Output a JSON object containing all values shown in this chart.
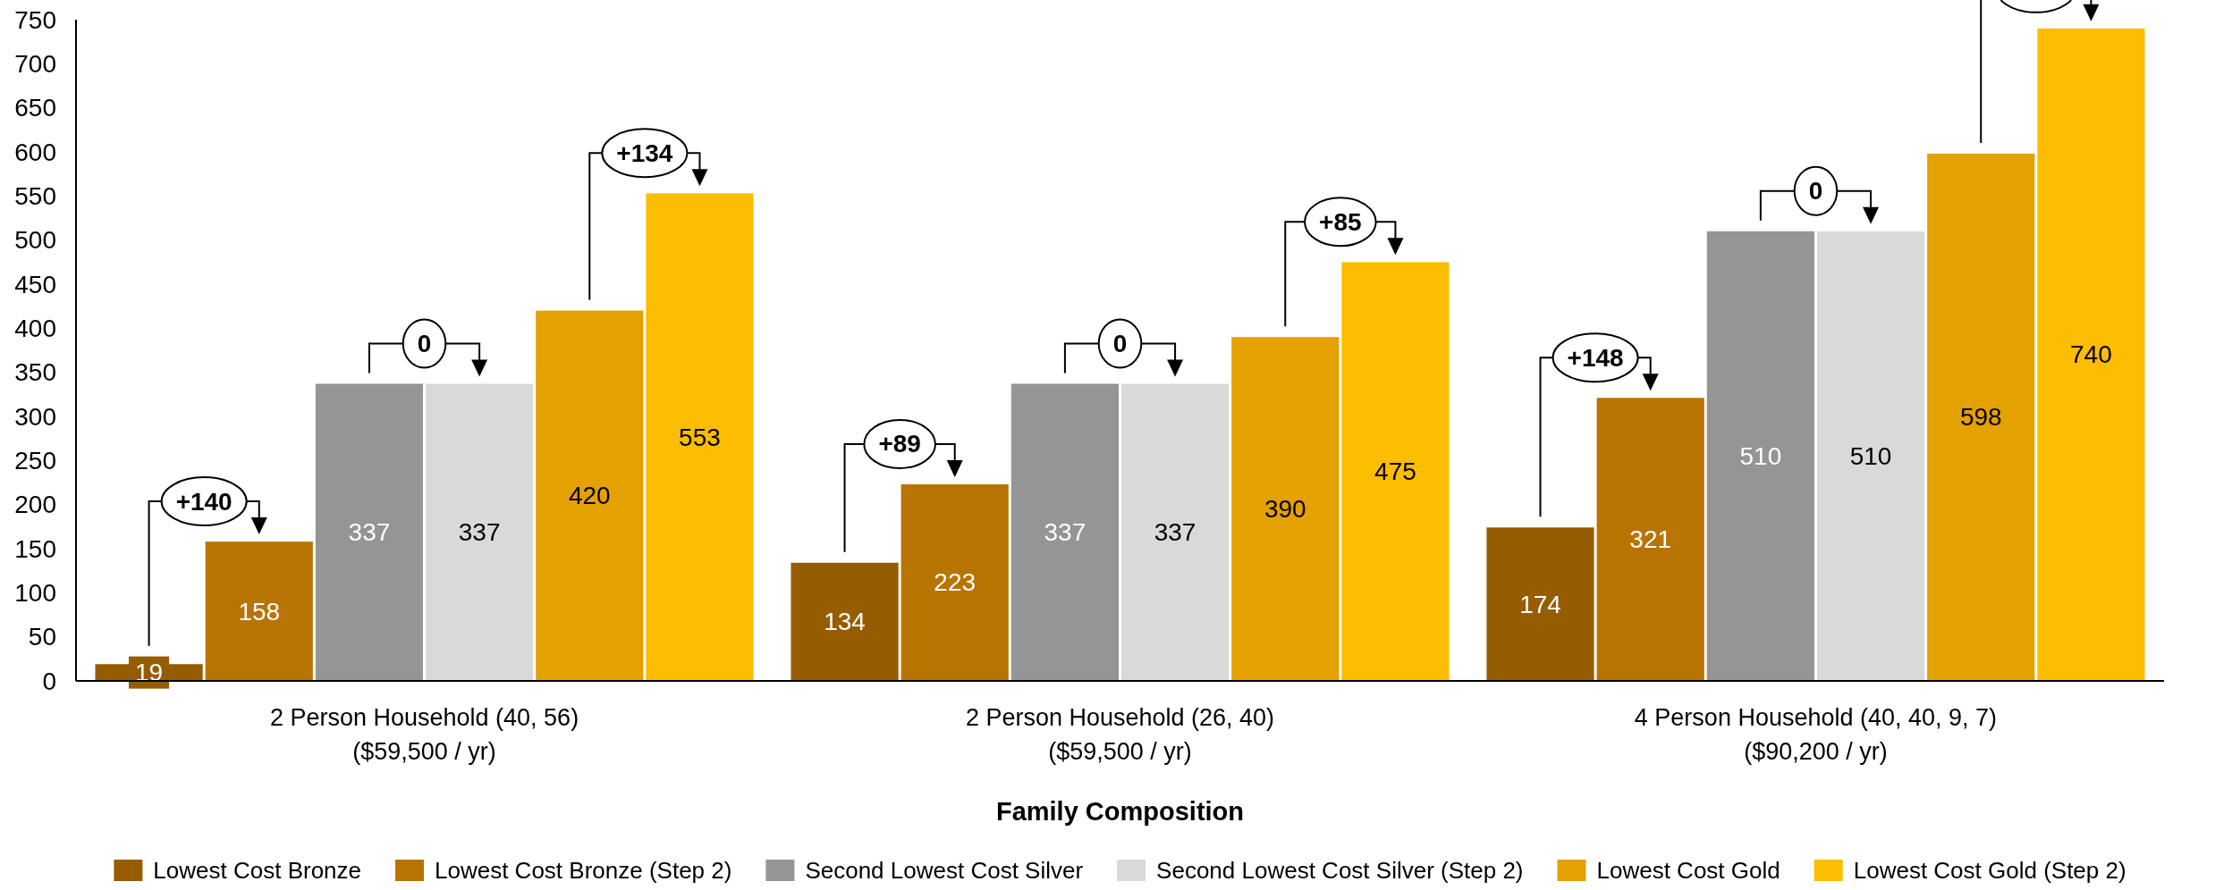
{
  "chart_data": {
    "type": "bar",
    "categories": [
      "2 Person Household (40, 56)\n($59,500 / yr)",
      "2 Person Household (26, 40)\n($59,500 / yr)",
      "4 Person Household (40, 40, 9, 7)\n($90,200 / yr)"
    ],
    "series": [
      {
        "name": "Lowest Cost Bronze",
        "color": "#965c00",
        "values": [
          19,
          134,
          174
        ]
      },
      {
        "name": "Lowest Cost Bronze (Step 2)",
        "color": "#b87400",
        "values": [
          158,
          223,
          321
        ]
      },
      {
        "name": "Second Lowest Cost Silver",
        "color": "#959595",
        "values": [
          337,
          337,
          510
        ]
      },
      {
        "name": "Second Lowest Cost Silver (Step 2)",
        "color": "#d9d9d9",
        "values": [
          337,
          337,
          510
        ]
      },
      {
        "name": "Lowest Cost Gold",
        "color": "#e5a100",
        "values": [
          420,
          390,
          598
        ]
      },
      {
        "name": "Lowest Cost Gold (Step 2)",
        "color": "#fdbd00",
        "values": [
          553,
          475,
          740
        ]
      }
    ],
    "xlabel": "Family Composition",
    "ylim": [
      0,
      750
    ],
    "yticks": [
      0,
      50,
      100,
      150,
      200,
      250,
      300,
      350,
      400,
      450,
      500,
      550,
      600,
      650,
      700,
      750
    ],
    "legend": "bottom",
    "data_labels": true,
    "annotations": [
      "+140",
      "0",
      "+134",
      "+89",
      "0",
      "+85",
      "+148",
      "0"
    ]
  }
}
